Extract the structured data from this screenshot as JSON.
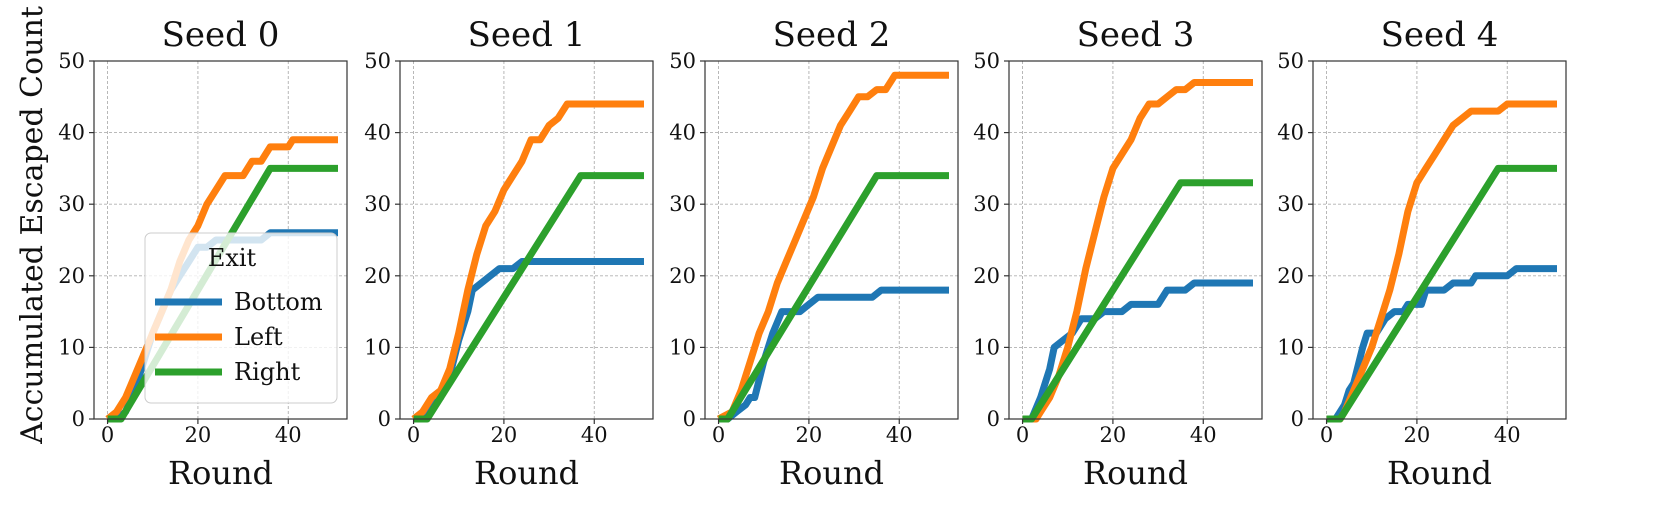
{
  "figure": {
    "ylabel": "Accumulated Escaped Count",
    "legend": {
      "title": "Exit",
      "entries": [
        {
          "label": "Bottom",
          "color": "#1f77b4"
        },
        {
          "label": "Left",
          "color": "#ff7f0e"
        },
        {
          "label": "Right",
          "color": "#2ca02c"
        }
      ],
      "placement": "lower-right of first panel (center-right)"
    }
  },
  "chart_data": [
    {
      "type": "line",
      "title": "Seed 0",
      "xlabel": "Round",
      "ylabel": "Accumulated Escaped Count",
      "xlim": [
        -3,
        53
      ],
      "ylim": [
        0,
        50
      ],
      "xticks": [
        0,
        20,
        40
      ],
      "yticks": [
        0,
        10,
        20,
        30,
        40,
        50
      ],
      "grid": true,
      "series": [
        {
          "name": "Bottom",
          "color": "#1f77b4",
          "points": [
            [
              0,
              0
            ],
            [
              2,
              0
            ],
            [
              4,
              1
            ],
            [
              6,
              4
            ],
            [
              8,
              8
            ],
            [
              10,
              12
            ],
            [
              12,
              15
            ],
            [
              14,
              18
            ],
            [
              16,
              20
            ],
            [
              18,
              22
            ],
            [
              20,
              24
            ],
            [
              22,
              24
            ],
            [
              24,
              25
            ],
            [
              28,
              25
            ],
            [
              32,
              25
            ],
            [
              34,
              25
            ],
            [
              36,
              26
            ],
            [
              40,
              26
            ],
            [
              44,
              26
            ],
            [
              48,
              26
            ],
            [
              51,
              26
            ]
          ]
        },
        {
          "name": "Left",
          "color": "#ff7f0e",
          "points": [
            [
              0,
              0
            ],
            [
              2,
              1
            ],
            [
              4,
              3
            ],
            [
              6,
              6
            ],
            [
              8,
              9
            ],
            [
              10,
              12
            ],
            [
              12,
              15
            ],
            [
              14,
              18
            ],
            [
              16,
              22
            ],
            [
              18,
              25
            ],
            [
              20,
              27
            ],
            [
              22,
              30
            ],
            [
              24,
              32
            ],
            [
              26,
              34
            ],
            [
              30,
              34
            ],
            [
              32,
              36
            ],
            [
              34,
              36
            ],
            [
              36,
              38
            ],
            [
              40,
              38
            ],
            [
              41,
              39
            ],
            [
              45,
              39
            ],
            [
              51,
              39
            ]
          ]
        },
        {
          "name": "Right",
          "color": "#2ca02c",
          "points": [
            [
              0,
              0
            ],
            [
              3,
              0
            ],
            [
              36,
              35
            ],
            [
              51,
              35
            ]
          ]
        }
      ]
    },
    {
      "type": "line",
      "title": "Seed 1",
      "xlabel": "Round",
      "xlim": [
        -3,
        53
      ],
      "ylim": [
        0,
        50
      ],
      "xticks": [
        0,
        20,
        40
      ],
      "yticks": [
        0,
        10,
        20,
        30,
        40,
        50
      ],
      "grid": true,
      "series": [
        {
          "name": "Bottom",
          "color": "#1f77b4",
          "points": [
            [
              0,
              0
            ],
            [
              2,
              0
            ],
            [
              4,
              2
            ],
            [
              6,
              3
            ],
            [
              8,
              6
            ],
            [
              10,
              11
            ],
            [
              12,
              15
            ],
            [
              13,
              18
            ],
            [
              15,
              19
            ],
            [
              17,
              20
            ],
            [
              19,
              21
            ],
            [
              22,
              21
            ],
            [
              24,
              22
            ],
            [
              30,
              22
            ],
            [
              40,
              22
            ],
            [
              51,
              22
            ]
          ]
        },
        {
          "name": "Left",
          "color": "#ff7f0e",
          "points": [
            [
              0,
              0
            ],
            [
              2,
              1
            ],
            [
              4,
              3
            ],
            [
              6,
              4
            ],
            [
              8,
              7
            ],
            [
              10,
              12
            ],
            [
              12,
              18
            ],
            [
              14,
              23
            ],
            [
              16,
              27
            ],
            [
              18,
              29
            ],
            [
              20,
              32
            ],
            [
              22,
              34
            ],
            [
              24,
              36
            ],
            [
              26,
              39
            ],
            [
              28,
              39
            ],
            [
              30,
              41
            ],
            [
              32,
              42
            ],
            [
              34,
              44
            ],
            [
              36,
              44
            ],
            [
              40,
              44
            ],
            [
              51,
              44
            ]
          ]
        },
        {
          "name": "Right",
          "color": "#2ca02c",
          "points": [
            [
              0,
              0
            ],
            [
              3,
              0
            ],
            [
              37,
              34
            ],
            [
              51,
              34
            ]
          ]
        }
      ]
    },
    {
      "type": "line",
      "title": "Seed 2",
      "xlabel": "Round",
      "xlim": [
        -3,
        53
      ],
      "ylim": [
        0,
        50
      ],
      "xticks": [
        0,
        20,
        40
      ],
      "yticks": [
        0,
        10,
        20,
        30,
        40,
        50
      ],
      "grid": true,
      "series": [
        {
          "name": "Bottom",
          "color": "#1f77b4",
          "points": [
            [
              0,
              0
            ],
            [
              2,
              0
            ],
            [
              4,
              1
            ],
            [
              6,
              2
            ],
            [
              7,
              3
            ],
            [
              8,
              3
            ],
            [
              10,
              8
            ],
            [
              12,
              12
            ],
            [
              14,
              15
            ],
            [
              16,
              15
            ],
            [
              18,
              15
            ],
            [
              20,
              16
            ],
            [
              22,
              17
            ],
            [
              26,
              17
            ],
            [
              30,
              17
            ],
            [
              34,
              17
            ],
            [
              36,
              18
            ],
            [
              40,
              18
            ],
            [
              51,
              18
            ]
          ]
        },
        {
          "name": "Left",
          "color": "#ff7f0e",
          "points": [
            [
              0,
              0
            ],
            [
              3,
              1
            ],
            [
              5,
              4
            ],
            [
              7,
              8
            ],
            [
              9,
              12
            ],
            [
              11,
              15
            ],
            [
              13,
              19
            ],
            [
              15,
              22
            ],
            [
              17,
              25
            ],
            [
              19,
              28
            ],
            [
              21,
              31
            ],
            [
              23,
              35
            ],
            [
              25,
              38
            ],
            [
              27,
              41
            ],
            [
              29,
              43
            ],
            [
              31,
              45
            ],
            [
              33,
              45
            ],
            [
              35,
              46
            ],
            [
              37,
              46
            ],
            [
              39,
              48
            ],
            [
              42,
              48
            ],
            [
              51,
              48
            ]
          ]
        },
        {
          "name": "Right",
          "color": "#2ca02c",
          "points": [
            [
              0,
              0
            ],
            [
              2,
              0
            ],
            [
              35,
              34
            ],
            [
              51,
              34
            ]
          ]
        }
      ]
    },
    {
      "type": "line",
      "title": "Seed 3",
      "xlabel": "Round",
      "xlim": [
        -3,
        53
      ],
      "ylim": [
        0,
        50
      ],
      "xticks": [
        0,
        20,
        40
      ],
      "yticks": [
        0,
        10,
        20,
        30,
        40,
        50
      ],
      "grid": true,
      "series": [
        {
          "name": "Bottom",
          "color": "#1f77b4",
          "points": [
            [
              0,
              0
            ],
            [
              2,
              0
            ],
            [
              4,
              3
            ],
            [
              6,
              7
            ],
            [
              7,
              10
            ],
            [
              9,
              11
            ],
            [
              11,
              12
            ],
            [
              13,
              14
            ],
            [
              16,
              14
            ],
            [
              18,
              15
            ],
            [
              22,
              15
            ],
            [
              24,
              16
            ],
            [
              30,
              16
            ],
            [
              32,
              18
            ],
            [
              36,
              18
            ],
            [
              38,
              19
            ],
            [
              45,
              19
            ],
            [
              51,
              19
            ]
          ]
        },
        {
          "name": "Left",
          "color": "#ff7f0e",
          "points": [
            [
              0,
              0
            ],
            [
              3,
              0
            ],
            [
              4,
              1
            ],
            [
              6,
              3
            ],
            [
              8,
              6
            ],
            [
              10,
              10
            ],
            [
              12,
              15
            ],
            [
              14,
              21
            ],
            [
              16,
              26
            ],
            [
              18,
              31
            ],
            [
              20,
              35
            ],
            [
              22,
              37
            ],
            [
              24,
              39
            ],
            [
              26,
              42
            ],
            [
              28,
              44
            ],
            [
              30,
              44
            ],
            [
              32,
              45
            ],
            [
              34,
              46
            ],
            [
              36,
              46
            ],
            [
              38,
              47
            ],
            [
              45,
              47
            ],
            [
              51,
              47
            ]
          ]
        },
        {
          "name": "Right",
          "color": "#2ca02c",
          "points": [
            [
              0,
              0
            ],
            [
              2,
              0
            ],
            [
              35,
              33
            ],
            [
              51,
              33
            ]
          ]
        }
      ]
    },
    {
      "type": "line",
      "title": "Seed 4",
      "xlabel": "Round",
      "xlim": [
        -3,
        53
      ],
      "ylim": [
        0,
        50
      ],
      "xticks": [
        0,
        20,
        40
      ],
      "yticks": [
        0,
        10,
        20,
        30,
        40,
        50
      ],
      "grid": true,
      "series": [
        {
          "name": "Bottom",
          "color": "#1f77b4",
          "points": [
            [
              0,
              0
            ],
            [
              2,
              0
            ],
            [
              4,
              2
            ],
            [
              5,
              4
            ],
            [
              6,
              5
            ],
            [
              8,
              10
            ],
            [
              9,
              12
            ],
            [
              11,
              12
            ],
            [
              13,
              14
            ],
            [
              15,
              15
            ],
            [
              17,
              15
            ],
            [
              18,
              16
            ],
            [
              21,
              16
            ],
            [
              22,
              18
            ],
            [
              26,
              18
            ],
            [
              28,
              19
            ],
            [
              32,
              19
            ],
            [
              33,
              20
            ],
            [
              38,
              20
            ],
            [
              40,
              20
            ],
            [
              42,
              21
            ],
            [
              51,
              21
            ]
          ]
        },
        {
          "name": "Left",
          "color": "#ff7f0e",
          "points": [
            [
              0,
              0
            ],
            [
              3,
              0
            ],
            [
              4,
              1
            ],
            [
              6,
              4
            ],
            [
              8,
              7
            ],
            [
              10,
              10
            ],
            [
              12,
              14
            ],
            [
              14,
              18
            ],
            [
              16,
              23
            ],
            [
              18,
              29
            ],
            [
              20,
              33
            ],
            [
              22,
              35
            ],
            [
              24,
              37
            ],
            [
              26,
              39
            ],
            [
              28,
              41
            ],
            [
              30,
              42
            ],
            [
              32,
              43
            ],
            [
              34,
              43
            ],
            [
              36,
              43
            ],
            [
              38,
              43
            ],
            [
              40,
              44
            ],
            [
              45,
              44
            ],
            [
              51,
              44
            ]
          ]
        },
        {
          "name": "Right",
          "color": "#2ca02c",
          "points": [
            [
              0,
              0
            ],
            [
              3,
              0
            ],
            [
              38,
              35
            ],
            [
              51,
              35
            ]
          ]
        }
      ]
    }
  ]
}
